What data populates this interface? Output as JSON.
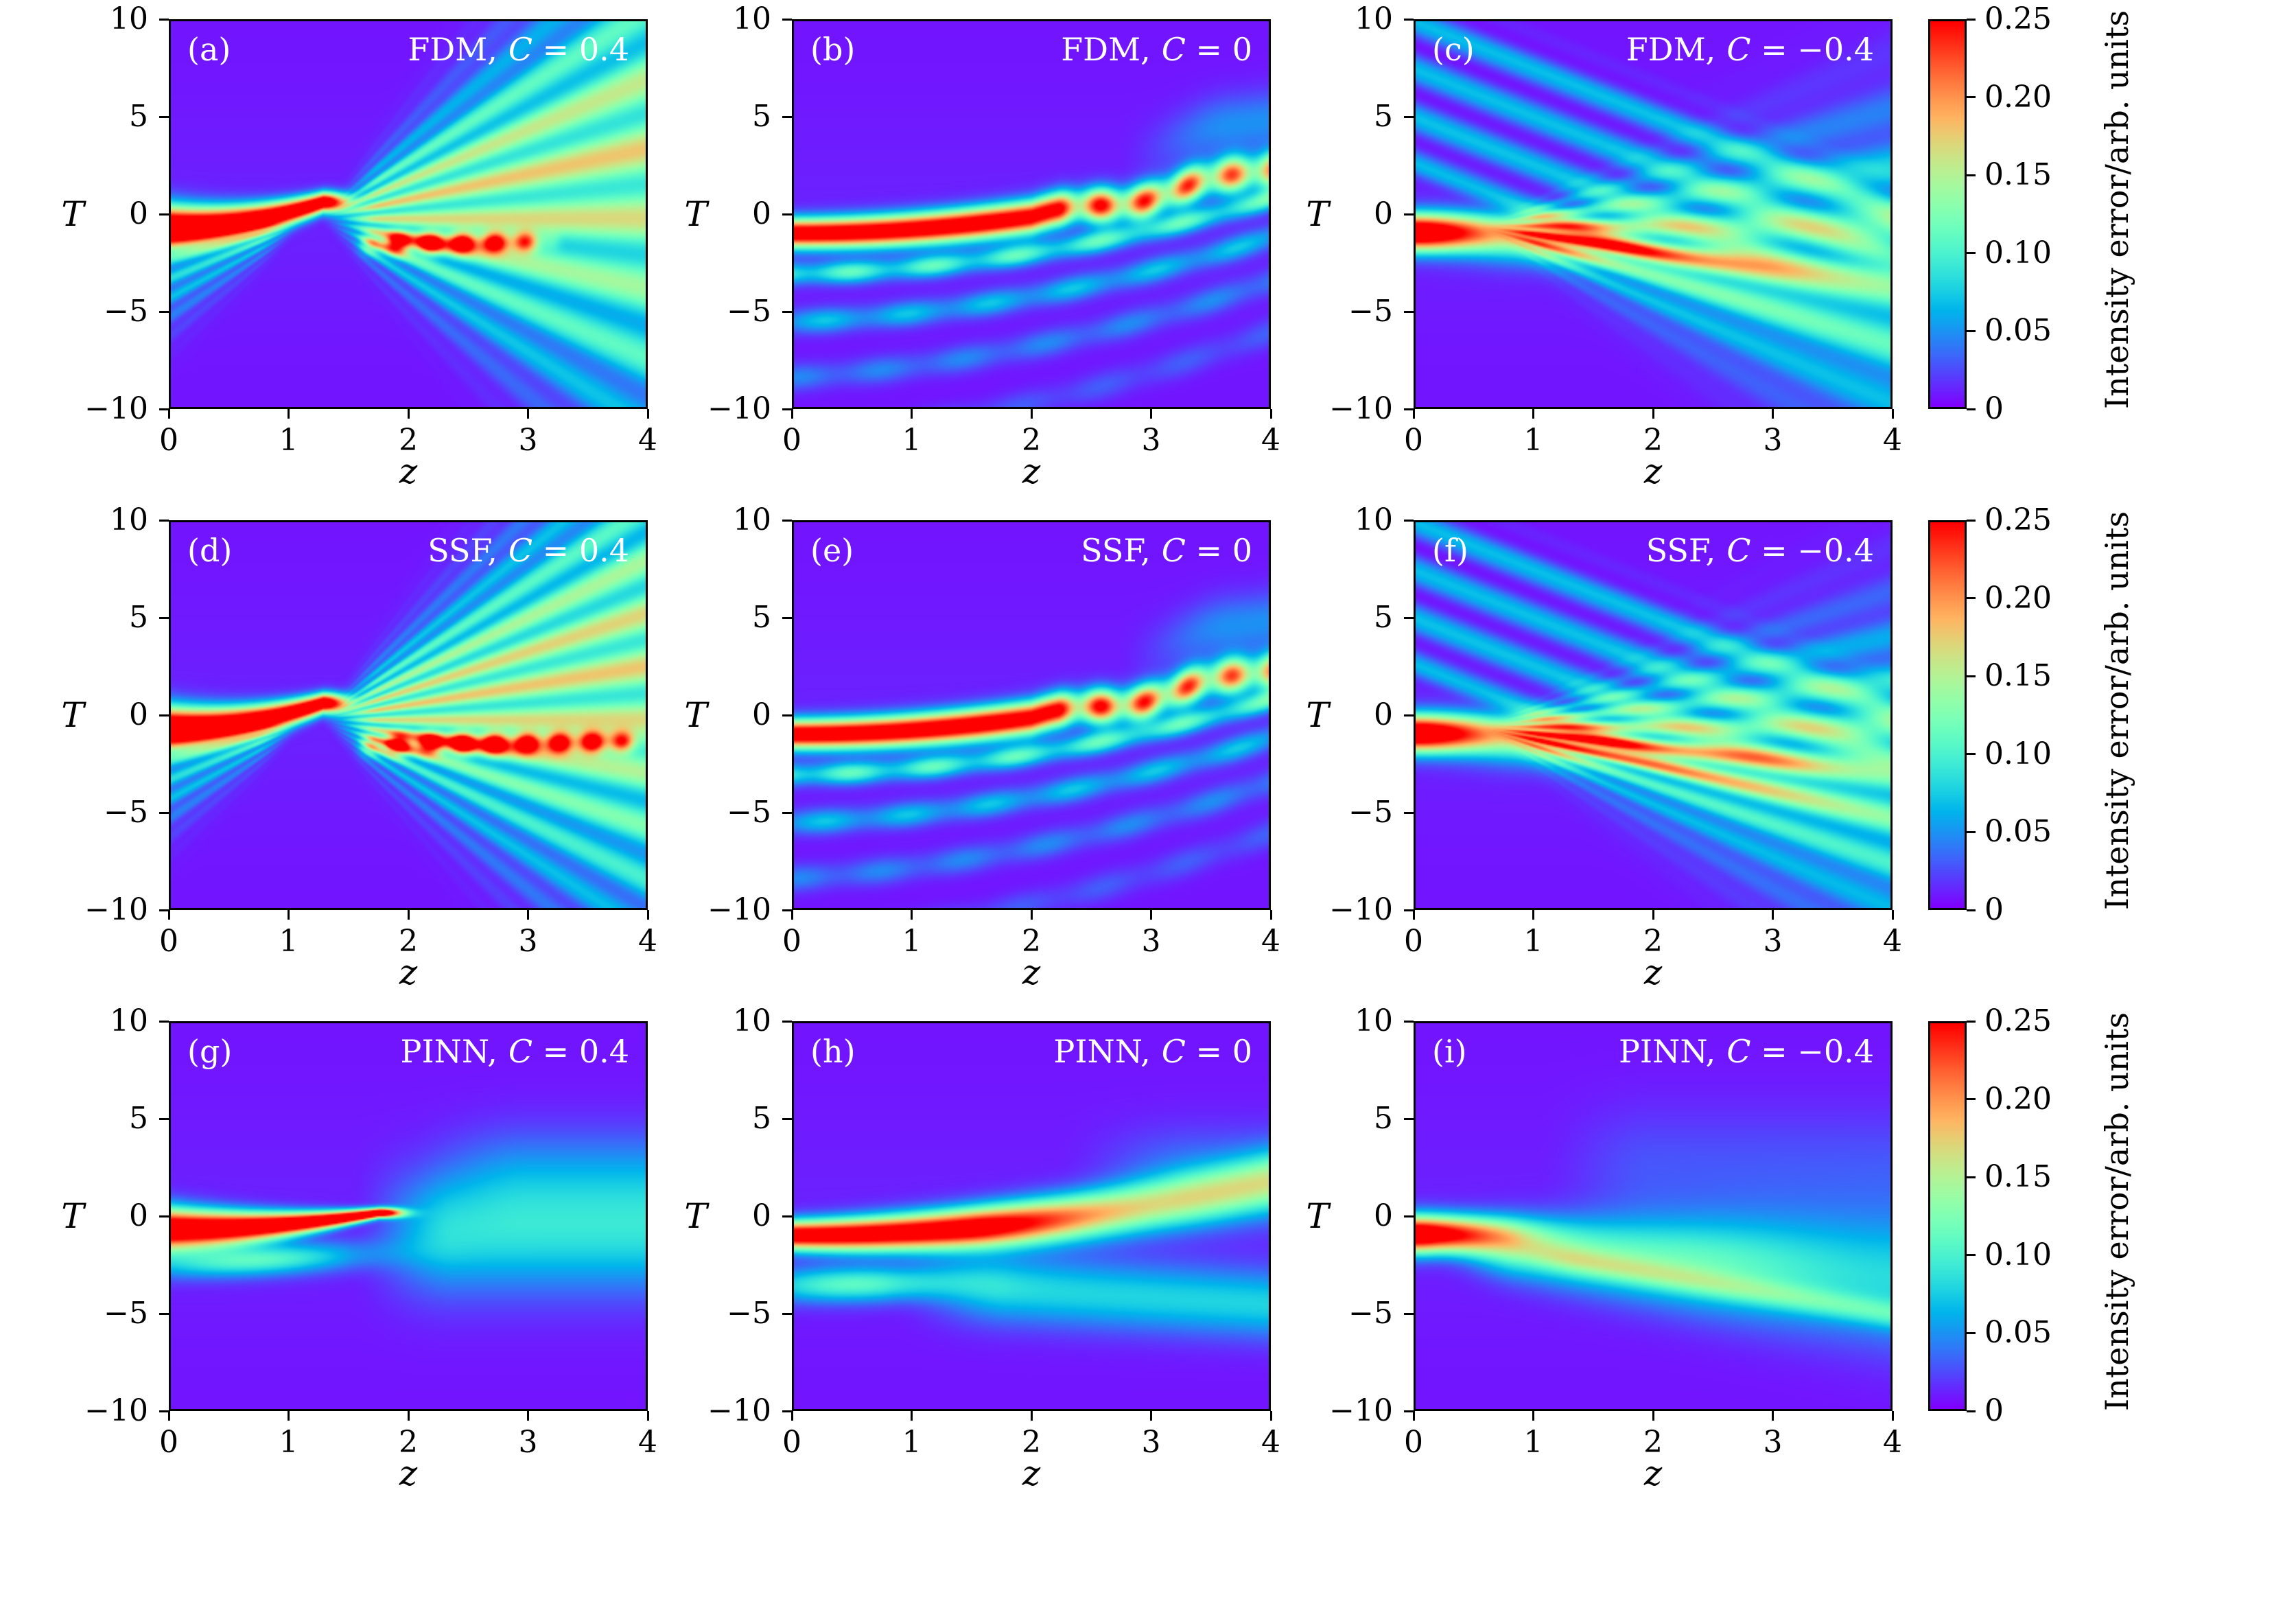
{
  "figure": {
    "background": "#ffffff",
    "kind": "3x3 heatmap grid of intensity error maps"
  },
  "axes": {
    "xlabel": "z",
    "ylabel": "T",
    "x_ticks": [
      "0",
      "1",
      "2",
      "3",
      "4"
    ],
    "y_ticks": [
      "10",
      "5",
      "0",
      "−5",
      "−10"
    ]
  },
  "colorbar": {
    "label": "Intensity error/arb. units",
    "ticks": [
      "0",
      "0.05",
      "0.10",
      "0.15",
      "0.20",
      "0.25"
    ],
    "min": 0,
    "max": 0.25,
    "colormap": "rainbow"
  },
  "chart_data": {
    "type": "heatmap",
    "grid": {
      "rows": 3,
      "cols": 3
    },
    "x": {
      "label": "z",
      "range": [
        0,
        4
      ],
      "ticks": [
        0,
        1,
        2,
        3,
        4
      ]
    },
    "y": {
      "label": "T",
      "range": [
        -10,
        10
      ],
      "ticks": [
        10,
        5,
        0,
        -5,
        -10
      ]
    },
    "value": {
      "label": "Intensity error/arb. units",
      "range": [
        0,
        0.25
      ],
      "colorbar_ticks": [
        0,
        0.05,
        0.1,
        0.15,
        0.2,
        0.25
      ],
      "colormap": "rainbow"
    },
    "colormap_anchors": {
      "0": "#8000ff",
      "0.25": "#00b4ec",
      "0.5": "#80ffb4",
      "0.75": "#ffb462",
      "1": "#ff0000"
    },
    "panels": [
      {
        "tag": "(a)",
        "method": "FDM",
        "C": 0.4,
        "method_label": "FDM,",
        "c_symbol": "C",
        "c_value": " = 0.4",
        "description": "High error blob near T≈0 for z<1.3, dispersive interference fan up-right, secondary band near T≈−1.5 for 1.7<z<3.3"
      },
      {
        "tag": "(b)",
        "method": "FDM",
        "C": 0,
        "method_label": "FDM,",
        "c_symbol": "C",
        "c_value": " = 0",
        "description": "Error band follows soliton center rising from T≈−1 to T≈2.5 by z=4 with weaker side fringes below"
      },
      {
        "tag": "(c)",
        "method": "FDM",
        "C": -0.4,
        "method_label": "FDM,",
        "c_symbol": "C",
        "c_value": " = −0.4",
        "description": "Initial burst near T≈−1, fan of interference fringes spreading downward-right, faint diagonal stripes above"
      },
      {
        "tag": "(d)",
        "method": "SSF",
        "C": 0.4,
        "method_label": "SSF,",
        "c_symbol": "C",
        "c_value": " = 0.4",
        "description": "Like (a) with denser fringes and a longer strong band near T≈−1.5 extending to z=4"
      },
      {
        "tag": "(e)",
        "method": "SSF",
        "C": 0,
        "method_label": "SSF,",
        "c_symbol": "C",
        "c_value": " = 0",
        "description": "Rising error band from T≈−1 to T≈2.5 with dashed modulation and sub-fringes"
      },
      {
        "tag": "(f)",
        "method": "SSF",
        "C": -0.4,
        "method_label": "SSF,",
        "c_symbol": "C",
        "c_value": " = −0.4",
        "description": "Initial burst near T≈−1 with dense downward interference fan, brighter mid-fan streaks"
      },
      {
        "tag": "(g)",
        "method": "PINN",
        "C": 0.4,
        "method_label": "PINN,",
        "c_symbol": "C",
        "c_value": " = 0.4",
        "description": "Smooth error: red wedge near T≈0 for z<1.8, then diffuse low cyan error, no fringes"
      },
      {
        "tag": "(h)",
        "method": "PINN",
        "C": 0,
        "method_label": "PINN,",
        "c_symbol": "C",
        "c_value": " = 0",
        "description": "Smooth band from T≈−1 rising slowly, diffuse lower lobe near T≈−4, no fringes"
      },
      {
        "tag": "(i)",
        "method": "PINN",
        "C": -0.4,
        "method_label": "PINN,",
        "c_symbol": "C",
        "c_value": " = −0.4",
        "description": "Smooth early burst near T≈−1 with diffuse cyan lobe drifting down to T≈−5 by z=4, no fringes"
      }
    ]
  }
}
